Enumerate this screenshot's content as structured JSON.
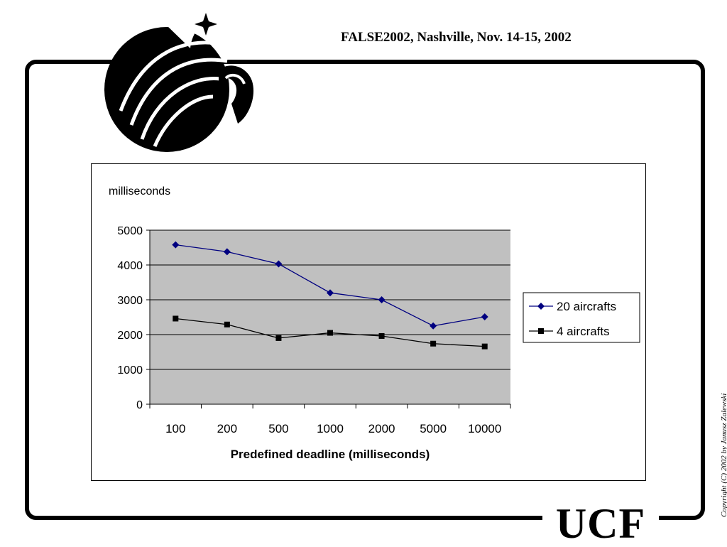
{
  "header": {
    "title": "FALSE2002, Nashville,  Nov. 14-15, 2002"
  },
  "footer": {
    "brand": "UCF",
    "copyright": "Copyright (C) 2002 by Janusz Zalewski"
  },
  "logo": {
    "icon": "pegasus-logo-icon"
  },
  "chart_data": {
    "type": "line",
    "title": "",
    "ylabel": "milliseconds",
    "xlabel": "Predefined deadline (milliseconds)",
    "categories": [
      "100",
      "200",
      "500",
      "1000",
      "2000",
      "5000",
      "10000"
    ],
    "ylim": [
      0,
      5000
    ],
    "yticks": [
      "0",
      "1000",
      "2000",
      "3000",
      "4000",
      "5000"
    ],
    "grid": true,
    "legend_position": "right",
    "colors": {
      "plot_bg": "#c0c0c0"
    },
    "series": [
      {
        "name": "20 aircrafts",
        "values": [
          4580,
          4380,
          4030,
          3200,
          3000,
          2250,
          2510
        ],
        "color": "#000080",
        "marker": "diamond"
      },
      {
        "name": "4 aircrafts",
        "values": [
          2460,
          2290,
          1900,
          2050,
          1960,
          1740,
          1660
        ],
        "color": "#000000",
        "marker": "square"
      }
    ]
  }
}
